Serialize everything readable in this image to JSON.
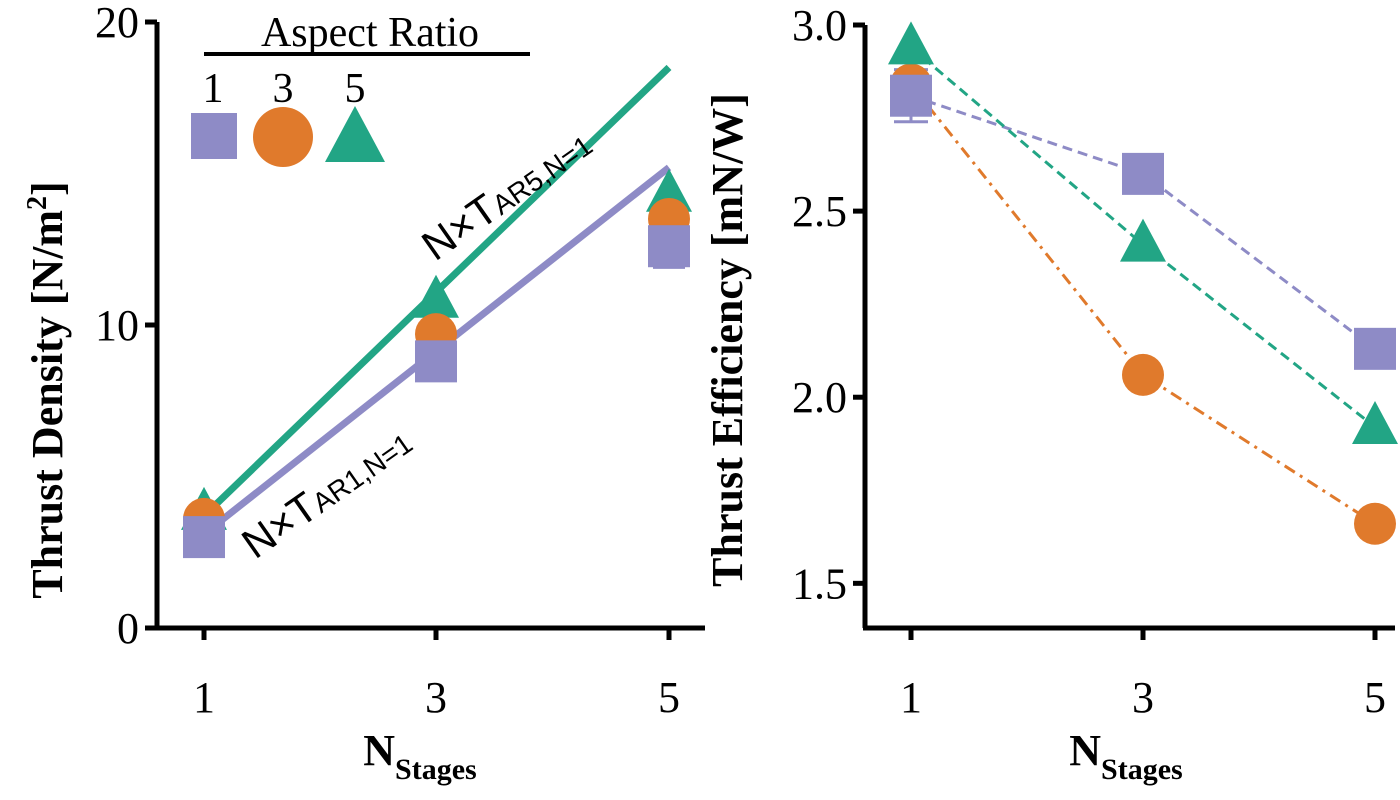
{
  "colors": {
    "ar1": "#8e8bc6",
    "ar3": "#e07a2c",
    "ar5": "#22a585",
    "axis": "#000000"
  },
  "legend": {
    "title": "Aspect Ratio",
    "entries": [
      {
        "label": "1",
        "marker": "square",
        "series": "ar1"
      },
      {
        "label": "3",
        "marker": "circle",
        "series": "ar3"
      },
      {
        "label": "5",
        "marker": "triangle",
        "series": "ar5"
      }
    ]
  },
  "chart_data": [
    {
      "type": "scatter",
      "title": "",
      "xlabel_main": "N",
      "xlabel_sub": "Stages",
      "ylabel_main": "Thrust Density [N/m",
      "ylabel_sup": "2",
      "ylabel_end": "]",
      "x_ticks": [
        1,
        3,
        5
      ],
      "y_ticks": [
        0,
        10,
        20
      ],
      "xlim": [
        0.6,
        5.4
      ],
      "ylim": [
        0,
        20
      ],
      "series": [
        {
          "name": "1",
          "key": "ar1",
          "marker": "square",
          "x": [
            1,
            3,
            5
          ],
          "y": [
            3.0,
            8.8,
            12.6
          ],
          "err_x5": [
            11.9,
            13.3
          ]
        },
        {
          "name": "3",
          "key": "ar3",
          "marker": "circle",
          "x": [
            1,
            3,
            5
          ],
          "y": [
            3.6,
            9.7,
            13.5
          ]
        },
        {
          "name": "5",
          "key": "ar5",
          "marker": "triangle",
          "x": [
            1,
            3,
            5
          ],
          "y": [
            3.8,
            10.8,
            14.3
          ]
        }
      ],
      "reference_lines": [
        {
          "key": "ar5",
          "x": [
            1,
            5
          ],
          "y": [
            3.7,
            18.5
          ],
          "label_main": "N×T",
          "label_sub": "AR5,N=1"
        },
        {
          "key": "ar1",
          "x": [
            1,
            5
          ],
          "y": [
            3.1,
            15.2
          ],
          "label_main": "N×T",
          "label_sub": "AR1,N=1"
        }
      ]
    },
    {
      "type": "line",
      "title": "",
      "xlabel_main": "N",
      "xlabel_sub": "Stages",
      "ylabel": "Thrust Efficiency [mN/W]",
      "x_ticks": [
        1,
        3,
        5
      ],
      "y_ticks": [
        1.5,
        2.0,
        2.5,
        3.0
      ],
      "y_tick_labels": [
        "1.5",
        "2.0",
        "2.5",
        "3.0"
      ],
      "xlim": [
        0.6,
        5.0
      ],
      "ylim": [
        1.38,
        3.0
      ],
      "series": [
        {
          "name": "1",
          "key": "ar1",
          "marker": "square",
          "dash": "dashed",
          "x": [
            1,
            3,
            5
          ],
          "y": [
            2.81,
            2.6,
            2.13
          ],
          "err_x1": [
            2.74,
            2.88
          ]
        },
        {
          "name": "3",
          "key": "ar3",
          "marker": "circle",
          "dash": "dashdot",
          "x": [
            1,
            3,
            5
          ],
          "y": [
            2.84,
            2.06,
            1.66
          ]
        },
        {
          "name": "5",
          "key": "ar5",
          "marker": "triangle",
          "dash": "dashed",
          "x": [
            1,
            3,
            5
          ],
          "y": [
            2.94,
            2.41,
            1.92
          ]
        }
      ]
    }
  ]
}
